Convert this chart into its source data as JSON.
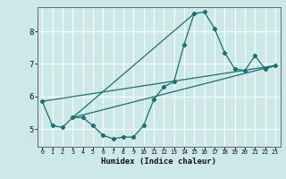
{
  "xlabel": "Humidex (Indice chaleur)",
  "background_color": "#cce8e8",
  "grid_color": "#ffffff",
  "line_color": "#1a7070",
  "xlim": [
    -0.5,
    23.5
  ],
  "ylim": [
    4.45,
    8.75
  ],
  "xticks": [
    0,
    1,
    2,
    3,
    4,
    5,
    6,
    7,
    8,
    9,
    10,
    11,
    12,
    13,
    14,
    15,
    16,
    17,
    18,
    19,
    20,
    21,
    22,
    23
  ],
  "yticks": [
    5,
    6,
    7,
    8
  ],
  "line1_x": [
    0,
    1,
    2,
    3,
    4,
    5,
    6,
    7,
    8,
    9,
    10,
    11,
    12,
    13,
    14,
    15,
    16,
    17,
    18,
    19,
    20,
    21,
    22,
    23
  ],
  "line1_y": [
    5.85,
    5.1,
    5.05,
    5.35,
    5.35,
    5.1,
    4.8,
    4.7,
    4.75,
    4.75,
    5.1,
    5.9,
    6.3,
    6.45,
    7.6,
    8.55,
    8.6,
    8.1,
    7.35,
    6.85,
    6.8,
    7.25,
    6.85,
    6.95
  ],
  "line3_x": [
    0,
    23
  ],
  "line3_y": [
    5.85,
    6.95
  ],
  "line4_x": [
    3,
    15
  ],
  "line4_y": [
    5.35,
    8.55
  ],
  "line5_x": [
    3,
    23
  ],
  "line5_y": [
    5.35,
    6.95
  ]
}
